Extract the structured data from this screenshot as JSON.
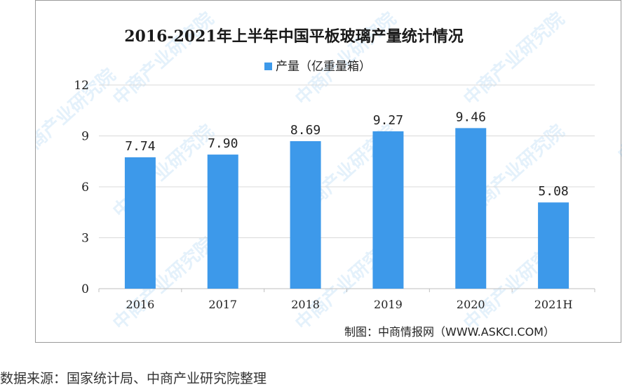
{
  "chart_data": {
    "type": "bar",
    "title": "2016-2021年上半年中国平板玻璃产量统计情况",
    "legend": {
      "label": "产量（亿重量箱）",
      "position": "top"
    },
    "categories": [
      "2016",
      "2017",
      "2018",
      "2019",
      "2020",
      "2021H"
    ],
    "series": [
      {
        "name": "产量（亿重量箱）",
        "values": [
          7.74,
          7.9,
          8.69,
          9.27,
          9.46,
          5.08
        ],
        "color": "#3d99ea"
      }
    ],
    "data_labels": [
      "7.74",
      "7.90",
      "8.69",
      "9.27",
      "9.46",
      "5.08"
    ],
    "ylim": [
      0,
      12
    ],
    "yticks": [
      "0",
      "3",
      "6",
      "9",
      "12"
    ],
    "grid": true,
    "xlabel": "",
    "ylabel": ""
  },
  "credit": "制图：中商情报网（WWW.ASKCI.COM）",
  "watermark": "中商产业研究院",
  "footnote": "数据来源：国家统计局、中商产业研究院整理",
  "colors": {
    "bar": "#3d99ea",
    "grid": "#d9d9d9",
    "axis": "#bfbfbf",
    "watermark": "#5aa9e6"
  }
}
